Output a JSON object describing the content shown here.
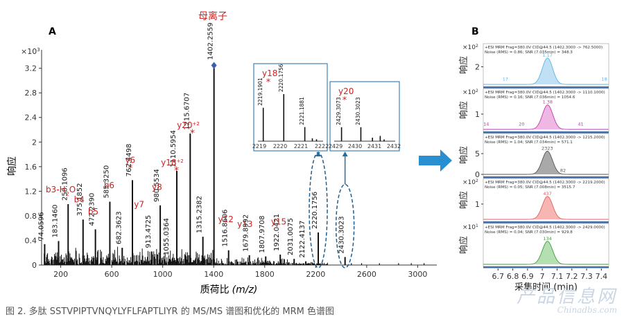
{
  "panel_a": {
    "label": "A",
    "parent_label": "母离子",
    "ylabel": "响应",
    "xlabel": "质荷比",
    "xlabel_unit": "(m/z)",
    "y_multiplier": "×10",
    "y_multiplier_exp": "3"
  },
  "panel_b": {
    "label": "B",
    "ylabel": "响应",
    "xlabel": "采集时间 (min)",
    "arrow_color": "#2a8fd0"
  },
  "caption": "图 2. 多肽 SSTVPIPTVNQYLYFLFAPTLIYR 的 MS/MS 谱图和优化的 MRM 色谱图",
  "watermark": {
    "line1": "产品信息网",
    "line2": "Chinadbs.com"
  },
  "colors": {
    "peak_label": "#cc2222",
    "inset_border": "#3b82b8",
    "bar": "#111111",
    "parent_marker": "#3b5fa8"
  },
  "chart_data": [
    {
      "type": "bar",
      "title": "",
      "xlabel": "质荷比 (m/z)",
      "ylabel": "响应",
      "xlim": [
        50,
        3150
      ],
      "ylim": [
        0,
        3.5
      ],
      "x_ticks": [
        200,
        600,
        1000,
        1400,
        1800,
        2200,
        2600,
        3000
      ],
      "y_ticks": [
        0,
        0.4,
        0.8,
        1.2,
        1.6,
        2.0,
        2.4,
        2.8,
        3.2
      ],
      "y_tick_labels": [
        "0",
        "0.4",
        "0.8",
        "1.2",
        "1.6",
        "2",
        "2.4",
        "2.8",
        "3.2"
      ],
      "grid": false,
      "peaks": [
        {
          "mz": 74.0596,
          "label": "74.0596",
          "y": 0.34
        },
        {
          "mz": 183.146,
          "label": "183.1460",
          "y": 0.39
        },
        {
          "mz": 258.1096,
          "label": "258.1096",
          "y": 0.99
        },
        {
          "mz": 375.1852,
          "label": "375.1852",
          "y": 0.74
        },
        {
          "mz": 472.239,
          "label": "472.2390",
          "y": 0.58
        },
        {
          "mz": 585.325,
          "label": "585.3250",
          "y": 1.03
        },
        {
          "mz": 682.3623,
          "label": "682.3623",
          "y": 0.28
        },
        {
          "mz": 762.4498,
          "label": "762.4498",
          "y": 1.38
        },
        {
          "mz": 913.4725,
          "label": "913.4725",
          "y": 0.22
        },
        {
          "mz": 980.5534,
          "label": "980.5534",
          "y": 0.97
        },
        {
          "mz": 1055.0364,
          "label": "1055.0364",
          "y": 0.1
        },
        {
          "mz": 1110.5954,
          "label": "1110.5954",
          "y": 1.53
        },
        {
          "mz": 1215.6707,
          "label": "1215.6707",
          "y": 2.14
        },
        {
          "mz": 1315.2382,
          "label": "1315.2382",
          "y": 0.46
        },
        {
          "mz": 1402.2559,
          "label": "1402.2559",
          "y": 3.28
        },
        {
          "mz": 1516.8606,
          "label": "1516.8606",
          "y": 0.24
        },
        {
          "mz": 1679.8992,
          "label": "1679.8992",
          "y": 0.16
        },
        {
          "mz": 1807.9708,
          "label": "1807.9708",
          "y": 0.14
        },
        {
          "mz": 1922.0421,
          "label": "1922.0421",
          "y": 0.17
        },
        {
          "mz": 2031.0075,
          "label": "2031.0075",
          "y": 0.1
        },
        {
          "mz": 2122.4137,
          "label": "2122.4137",
          "y": 0.06
        },
        {
          "mz": 2220.1756,
          "label": "2220.1756",
          "y": 0.53
        },
        {
          "mz": 2430.3023,
          "label": "2430.3023",
          "y": 0.13
        }
      ],
      "ion_annotations": [
        {
          "text": "b3-H",
          "sub": "2",
          "tail": "O",
          "mz": 200,
          "y": 1.18
        },
        {
          "text": "b4",
          "mz": 345,
          "y": 1.02
        },
        {
          "text": "b5",
          "mz": 455,
          "y": 0.82
        },
        {
          "text": "b6",
          "mz": 580,
          "y": 1.25
        },
        {
          "text": "y6",
          "star": true,
          "mz": 745,
          "y": 1.66
        },
        {
          "text": "y7",
          "mz": 815,
          "y": 0.94
        },
        {
          "text": "y8",
          "mz": 955,
          "y": 1.22
        },
        {
          "text": "y18",
          "sup": "+2",
          "star": true,
          "mz": 1075,
          "y": 1.62
        },
        {
          "text": "y20",
          "sup": "+2",
          "star": true,
          "mz": 1200,
          "y": 2.23
        },
        {
          "text": "y12",
          "mz": 1495,
          "y": 0.7
        },
        {
          "text": "y13",
          "mz": 1645,
          "y": 0.62
        },
        {
          "text": "y15",
          "mz": 1910,
          "y": 0.66
        }
      ],
      "insets": [
        {
          "label": "y18",
          "star": true,
          "x_ticks": [
            "2219",
            "2220",
            "2221",
            "2222"
          ],
          "peaks": [
            {
              "mz": 2219.1901,
              "label": "2219.1901",
              "y": 0.71
            },
            {
              "mz": 2220.1756,
              "label": "2220.1756",
              "y": 1.0
            },
            {
              "mz": 2221.1881,
              "label": "2221.1881",
              "y": 0.3
            },
            {
              "mz": 2221.55,
              "label": "",
              "y": 0.06
            },
            {
              "mz": 2221.75,
              "label": "",
              "y": 0.04
            }
          ]
        },
        {
          "label": "y20",
          "star": true,
          "x_ticks": [
            "2429",
            "2430",
            "2431",
            "2432"
          ],
          "peaks": [
            {
              "mz": 2429.3073,
              "label": "2429.3073",
              "y": 0.48
            },
            {
              "mz": 2430.3023,
              "label": "2430.3023",
              "y": 0.48
            },
            {
              "mz": 2430.9,
              "label": "",
              "y": 0.12
            },
            {
              "mz": 2431.3,
              "label": "",
              "y": 0.18
            },
            {
              "mz": 2431.5,
              "label": "",
              "y": 0.06
            }
          ]
        }
      ]
    },
    {
      "type": "line",
      "title": "",
      "xlabel": "采集时间 (min)",
      "ylabel": "响应",
      "xlim": [
        6.6,
        7.45
      ],
      "x_ticks": [
        6.7,
        6.8,
        6.9,
        7.0,
        7.1,
        7.2,
        7.3,
        7.4
      ],
      "x_tick_labels": [
        "6.7",
        "6.8",
        "6.9",
        "7",
        "7.1",
        "7.2",
        "7.3",
        "7.4"
      ],
      "traces": [
        {
          "header": "+ESI MRM Frag=380.0V CID@44.5 (1402.3000 -> 762.5000)",
          "noise": "Noise (RMS) = 0.86; SNR (7.035min) = 348.3",
          "multiplier": "×10",
          "multiplier_exp": "2",
          "y_ticks": [
            2
          ],
          "ymax": 3.3,
          "color": "#5fb3e6",
          "fill": "#bfe0f5",
          "apex_rt": 7.035,
          "apex_height": 3.0,
          "apex_label": "1.17",
          "side_labels": [
            {
              "text": "17",
              "rt": 6.75,
              "y": 0.45
            },
            {
              "text": "18",
              "rt": 7.42,
              "y": 0.45
            }
          ]
        },
        {
          "header": "+ESI MRM Frag=380.0V CID@44.5 (1402.3000 -> 1110.1000)",
          "noise": "Noise (RMS) = 0.16; SNR (7.036min) = 1054.6",
          "multiplier": "×10",
          "multiplier_exp": "2",
          "y_ticks": [
            1
          ],
          "ymax": 1.9,
          "color": "#c23ba8",
          "fill": "#efb7e4",
          "apex_rt": 7.036,
          "apex_height": 1.6,
          "apex_label": "1.38",
          "side_labels": [
            {
              "text": "14",
              "rt": 6.62,
              "y": 0.25
            },
            {
              "text": "20",
              "rt": 6.86,
              "y": 0.25
            },
            {
              "text": "41",
              "rt": 7.26,
              "y": 0.25
            }
          ]
        },
        {
          "header": "+ESI MRM Frag=380.0V CID@44.5 (1402.3000 -> 1215.2000)",
          "noise": "Noise (RMS) = 1.04; SNR (7.034min) = 571.1",
          "multiplier": "",
          "multiplier_exp": "",
          "y_ticks": [
            0,
            5
          ],
          "ymax": 7,
          "color": "#555555",
          "fill": "#a9a9a9",
          "apex_rt": 7.034,
          "apex_height": 5.6,
          "apex_label": "2323",
          "side_labels": [
            {
              "text": "82",
              "rt": 7.14,
              "y": 0.6
            }
          ]
        },
        {
          "header": "+ESI MRM Frag=380.0V CID@44.5 (1402.3000 -> 2219.2000)",
          "noise": "Noise (RMS) = 0.05; SNR (7.008min) = 3515.7",
          "multiplier": "×10",
          "multiplier_exp": "2",
          "y_ticks": [
            1
          ],
          "ymax": 1.9,
          "color": "#e0605f",
          "fill": "#f7b6b4",
          "apex_rt": 7.035,
          "apex_height": 1.5,
          "apex_label": "437",
          "side_labels": []
        },
        {
          "header": "+ESI MRM Frag=380.0V CID@44.5 (1402.3000 -> 2429.0000)",
          "noise": "Noise (RMS) = 0.04; SNR (7.030min) = 929.8",
          "multiplier": "×10",
          "multiplier_exp": "1",
          "y_ticks": [],
          "ymax": 1.2,
          "color": "#3c9c3c",
          "fill": "#b4dfb0",
          "apex_rt": 7.035,
          "apex_height": 0.95,
          "apex_label": "134",
          "side_labels": []
        }
      ]
    }
  ]
}
